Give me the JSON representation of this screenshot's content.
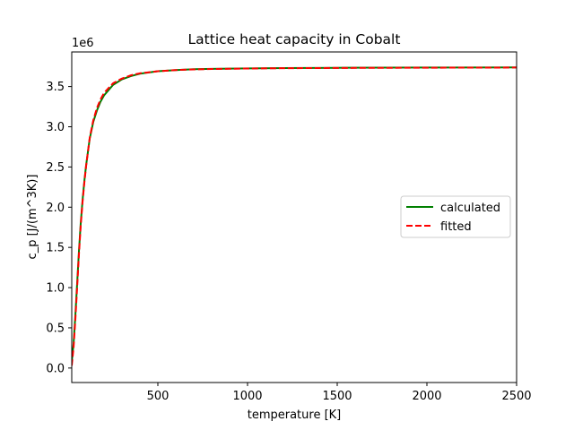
{
  "chart_data": {
    "type": "line",
    "title": "Lattice heat capacity in Cobalt",
    "xlabel": "temperature [K]",
    "ylabel": "c_p [J/(m^3K)]",
    "y_offset_label": "1e6",
    "xlim": [
      20,
      2500
    ],
    "ylim": [
      -0.18,
      3.93
    ],
    "y_scale_factor": 1000000,
    "x_ticks": [
      500,
      1000,
      1500,
      2000,
      2500
    ],
    "x_tick_labels": [
      "500",
      "1000",
      "1500",
      "2000",
      "2500"
    ],
    "y_ticks": [
      0.0,
      0.5,
      1.0,
      1.5,
      2.0,
      2.5,
      3.0,
      3.5
    ],
    "y_tick_labels": [
      "0.0",
      "0.5",
      "1.0",
      "1.5",
      "2.0",
      "2.5",
      "3.0",
      "3.5"
    ],
    "grid": false,
    "legend_position": "center-right",
    "x": [
      20,
      30,
      40,
      50,
      60,
      70,
      80,
      90,
      100,
      120,
      140,
      160,
      180,
      200,
      250,
      300,
      350,
      400,
      500,
      600,
      700,
      800,
      1000,
      1200,
      1500,
      2000,
      2500
    ],
    "series": [
      {
        "name": "calculated",
        "color": "#008000",
        "style": "solid",
        "values": [
          0.08,
          0.3,
          0.65,
          1.05,
          1.45,
          1.8,
          2.08,
          2.32,
          2.52,
          2.85,
          3.06,
          3.2,
          3.31,
          3.39,
          3.52,
          3.59,
          3.63,
          3.66,
          3.69,
          3.705,
          3.715,
          3.72,
          3.725,
          3.73,
          3.733,
          3.736,
          3.738
        ]
      },
      {
        "name": "fitted",
        "color": "#ff0000",
        "style": "dashed",
        "values": [
          0.03,
          0.25,
          0.6,
          1.0,
          1.41,
          1.77,
          2.06,
          2.3,
          2.51,
          2.86,
          3.08,
          3.23,
          3.34,
          3.42,
          3.54,
          3.6,
          3.64,
          3.665,
          3.69,
          3.705,
          3.713,
          3.718,
          3.724,
          3.728,
          3.731,
          3.734,
          3.736
        ]
      }
    ]
  }
}
